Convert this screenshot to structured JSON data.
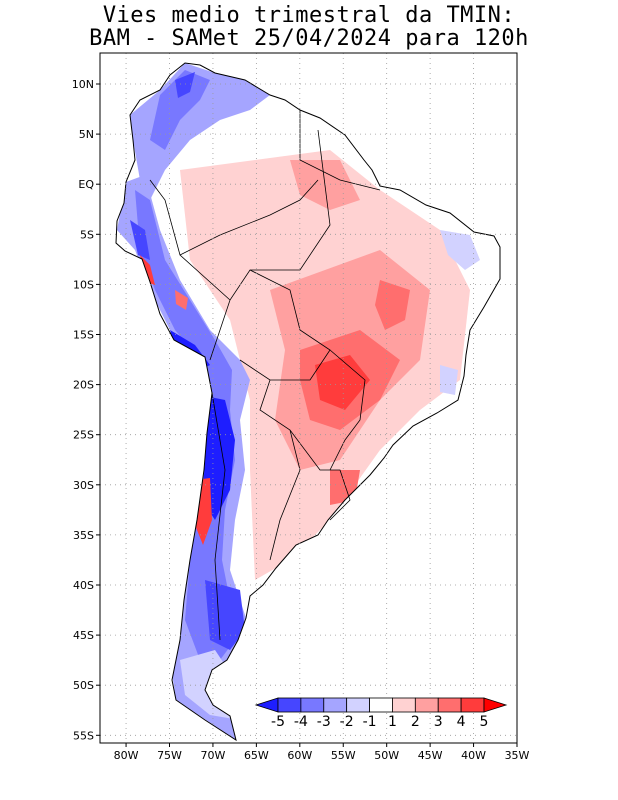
{
  "title": {
    "line1": "Vies medio trimestral da TMIN:",
    "line2": "BAM - SAMet 25/04/2024  para 120h"
  },
  "map": {
    "lon_range": [
      -83,
      -35
    ],
    "lat_range": [
      -56,
      13
    ],
    "lat_ticks": [
      {
        "value": 10,
        "label": "10N"
      },
      {
        "value": 5,
        "label": "5N"
      },
      {
        "value": 0,
        "label": "EQ"
      },
      {
        "value": -5,
        "label": "5S"
      },
      {
        "value": -10,
        "label": "10S"
      },
      {
        "value": -15,
        "label": "15S"
      },
      {
        "value": -20,
        "label": "20S"
      },
      {
        "value": -25,
        "label": "25S"
      },
      {
        "value": -30,
        "label": "30S"
      },
      {
        "value": -35,
        "label": "35S"
      },
      {
        "value": -40,
        "label": "40S"
      },
      {
        "value": -45,
        "label": "45S"
      },
      {
        "value": -50,
        "label": "50S"
      },
      {
        "value": -55,
        "label": "55S"
      }
    ],
    "lon_ticks": [
      {
        "value": -80,
        "label": "80W"
      },
      {
        "value": -75,
        "label": "75W"
      },
      {
        "value": -70,
        "label": "70W"
      },
      {
        "value": -65,
        "label": "65W"
      },
      {
        "value": -60,
        "label": "60W"
      },
      {
        "value": -55,
        "label": "55W"
      },
      {
        "value": -50,
        "label": "50W"
      },
      {
        "value": -45,
        "label": "45W"
      },
      {
        "value": -40,
        "label": "40W"
      },
      {
        "value": -35,
        "label": "35W"
      }
    ],
    "grid": true
  },
  "colorbar": {
    "labels": [
      "-5",
      "-4",
      "-3",
      "-2",
      "-1",
      "1",
      "2",
      "3",
      "4",
      "5"
    ],
    "colors": [
      "#1e1eff",
      "#4646ff",
      "#7878ff",
      "#a5a5ff",
      "#d2d2ff",
      "#ffffff",
      "#ffd2d2",
      "#ffa0a0",
      "#ff6e6e",
      "#ff3c3c",
      "#ff0000"
    ]
  }
}
